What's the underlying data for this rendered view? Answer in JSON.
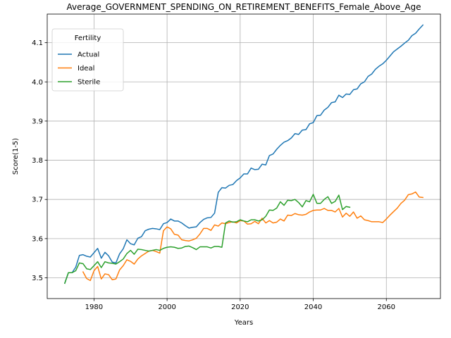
{
  "chart_data": {
    "type": "line",
    "title": "Average_GOVERNMENT_SPENDING_ON_RETIREMENT_BENEFITS_Female_Above_Age",
    "xlabel": "Years",
    "ylabel": "Score(1-5)",
    "xlim": [
      1967.2,
      2074.8
    ],
    "ylim": [
      3.447,
      4.173
    ],
    "xticks": [
      1980,
      2000,
      2020,
      2040,
      2060
    ],
    "yticks": [
      3.5,
      3.6,
      3.7,
      3.8,
      3.9,
      4.0,
      4.1
    ],
    "grid": true,
    "legend": {
      "title": "Fertility",
      "placement": "upper-left"
    },
    "series": [
      {
        "name": "Actual",
        "color": "#1f77b4",
        "x": [
          1972,
          1973,
          1974,
          1975,
          1976,
          1977,
          1978,
          1979,
          1980,
          1981,
          1982,
          1983,
          1984,
          1985,
          1986,
          1987,
          1988,
          1989,
          1990,
          1991,
          1992,
          1993,
          1994,
          1995,
          1996,
          1997,
          1998,
          1999,
          2000,
          2001,
          2002,
          2003,
          2004,
          2005,
          2006,
          2007,
          2008,
          2009,
          2010,
          2011,
          2012,
          2013,
          2014,
          2015,
          2016,
          2017,
          2018,
          2019,
          2020,
          2021,
          2022,
          2023,
          2024,
          2025,
          2026,
          2027,
          2028,
          2029,
          2030,
          2031,
          2032,
          2033,
          2034,
          2035,
          2036,
          2037,
          2038,
          2039,
          2040,
          2041,
          2042,
          2043,
          2044,
          2045,
          2046,
          2047,
          2048,
          2049,
          2050,
          2051,
          2052,
          2053,
          2054,
          2055,
          2056,
          2057,
          2058,
          2059,
          2060,
          2061,
          2062,
          2063,
          2064,
          2065,
          2066,
          2067,
          2068,
          2069,
          2070
        ],
        "y": [
          3.486,
          3.513,
          3.513,
          3.527,
          3.557,
          3.559,
          3.555,
          3.553,
          3.564,
          3.575,
          3.55,
          3.565,
          3.556,
          3.54,
          3.538,
          3.561,
          3.574,
          3.597,
          3.587,
          3.584,
          3.601,
          3.605,
          3.62,
          3.624,
          3.626,
          3.625,
          3.623,
          3.638,
          3.641,
          3.65,
          3.645,
          3.645,
          3.64,
          3.633,
          3.627,
          3.629,
          3.63,
          3.641,
          3.649,
          3.653,
          3.654,
          3.665,
          3.718,
          3.73,
          3.729,
          3.736,
          3.738,
          3.748,
          3.755,
          3.765,
          3.765,
          3.78,
          3.776,
          3.777,
          3.79,
          3.788,
          3.812,
          3.816,
          3.828,
          3.838,
          3.846,
          3.85,
          3.857,
          3.868,
          3.866,
          3.877,
          3.878,
          3.893,
          3.896,
          3.914,
          3.915,
          3.928,
          3.935,
          3.947,
          3.949,
          3.966,
          3.96,
          3.969,
          3.968,
          3.98,
          3.982,
          3.995,
          4.0,
          4.014,
          4.02,
          4.032,
          4.04,
          4.046,
          4.055,
          4.066,
          4.077,
          4.084,
          4.091,
          4.099,
          4.106,
          4.118,
          4.124,
          4.135,
          4.145
        ]
      },
      {
        "name": "Ideal",
        "color": "#ff7f0e",
        "x": [
          1977,
          1978,
          1979,
          1980,
          1981,
          1982,
          1983,
          1984,
          1985,
          1986,
          1987,
          1988,
          1989,
          1990,
          1991,
          1992,
          1993,
          1994,
          1995,
          1996,
          1997,
          1998,
          1999,
          2000,
          2001,
          2002,
          2003,
          2004,
          2005,
          2006,
          2007,
          2008,
          2009,
          2010,
          2011,
          2012,
          2013,
          2014,
          2015,
          2016,
          2017,
          2018,
          2019,
          2020,
          2021,
          2022,
          2023,
          2024,
          2025,
          2026,
          2027,
          2028,
          2029,
          2030,
          2031,
          2032,
          2033,
          2034,
          2035,
          2036,
          2037,
          2038,
          2039,
          2040,
          2041,
          2042,
          2043,
          2044,
          2045,
          2046,
          2047,
          2048,
          2049,
          2050,
          2051,
          2052,
          2053,
          2054,
          2055,
          2056,
          2057,
          2058,
          2059,
          2060,
          2061,
          2062,
          2063,
          2064,
          2065,
          2066,
          2067,
          2068,
          2069,
          2070
        ],
        "y": [
          3.515,
          3.498,
          3.493,
          3.518,
          3.529,
          3.497,
          3.51,
          3.508,
          3.495,
          3.497,
          3.52,
          3.531,
          3.546,
          3.542,
          3.535,
          3.548,
          3.556,
          3.562,
          3.568,
          3.57,
          3.567,
          3.563,
          3.62,
          3.63,
          3.625,
          3.611,
          3.609,
          3.597,
          3.595,
          3.594,
          3.597,
          3.601,
          3.612,
          3.626,
          3.626,
          3.621,
          3.635,
          3.632,
          3.64,
          3.638,
          3.641,
          3.643,
          3.64,
          3.646,
          3.645,
          3.637,
          3.638,
          3.644,
          3.638,
          3.652,
          3.64,
          3.646,
          3.64,
          3.642,
          3.65,
          3.645,
          3.66,
          3.659,
          3.664,
          3.661,
          3.66,
          3.662,
          3.668,
          3.672,
          3.673,
          3.673,
          3.677,
          3.672,
          3.672,
          3.668,
          3.677,
          3.655,
          3.665,
          3.657,
          3.668,
          3.652,
          3.658,
          3.648,
          3.646,
          3.643,
          3.643,
          3.643,
          3.641,
          3.65,
          3.66,
          3.669,
          3.678,
          3.69,
          3.698,
          3.712,
          3.714,
          3.719,
          3.706,
          3.705
        ]
      },
      {
        "name": "Sterile",
        "color": "#2ca02c",
        "x": [
          1972,
          1973,
          1974,
          1975,
          1976,
          1977,
          1978,
          1979,
          1980,
          1981,
          1982,
          1983,
          1984,
          1985,
          1986,
          1987,
          1988,
          1989,
          1990,
          1991,
          1992,
          1993,
          1994,
          1995,
          1996,
          1997,
          1998,
          1999,
          2000,
          2001,
          2002,
          2003,
          2004,
          2005,
          2006,
          2007,
          2008,
          2009,
          2010,
          2011,
          2012,
          2013,
          2014,
          2015,
          2016,
          2017,
          2018,
          2019,
          2020,
          2021,
          2022,
          2023,
          2024,
          2025,
          2026,
          2027,
          2028,
          2029,
          2030,
          2031,
          2032,
          2033,
          2034,
          2035,
          2036,
          2037,
          2038,
          2039,
          2040,
          2041,
          2042,
          2043,
          2044,
          2045,
          2046,
          2047,
          2048,
          2049,
          2050
        ],
        "y": [
          3.486,
          3.513,
          3.513,
          3.518,
          3.538,
          3.536,
          3.523,
          3.521,
          3.531,
          3.541,
          3.526,
          3.541,
          3.538,
          3.537,
          3.535,
          3.541,
          3.548,
          3.562,
          3.57,
          3.56,
          3.573,
          3.572,
          3.57,
          3.568,
          3.57,
          3.572,
          3.57,
          3.575,
          3.578,
          3.579,
          3.578,
          3.575,
          3.576,
          3.58,
          3.581,
          3.577,
          3.572,
          3.579,
          3.579,
          3.579,
          3.576,
          3.58,
          3.58,
          3.578,
          3.64,
          3.645,
          3.642,
          3.643,
          3.648,
          3.645,
          3.643,
          3.648,
          3.648,
          3.645,
          3.648,
          3.657,
          3.673,
          3.672,
          3.678,
          3.694,
          3.685,
          3.698,
          3.697,
          3.7,
          3.692,
          3.681,
          3.697,
          3.694,
          3.713,
          3.69,
          3.69,
          3.7,
          3.707,
          3.69,
          3.695,
          3.711,
          3.674,
          3.682,
          3.68
        ]
      }
    ]
  }
}
